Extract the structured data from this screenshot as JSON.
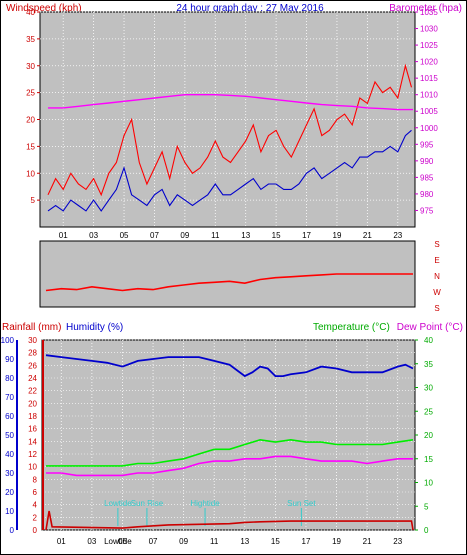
{
  "colors": {
    "plot_bg": "#c0c0c0",
    "wind": "#ff0000",
    "wind_avg": "#0000cc",
    "baro": "#ff00ff",
    "rain": "#cc0000",
    "humidity": "#0000cc",
    "temp": "#00ee00",
    "dew": "#ff00ff",
    "annotation": "#33cccc",
    "dir_letters": "#cc0000",
    "grid": "#ffffff"
  },
  "chart_data": [
    {
      "type": "line",
      "title": "24 hour graph day : 27 May 2016",
      "ylabel_left": "Windspeed (kph)",
      "ylabel_right": "Barometer (hpa)",
      "x_ticks": [
        "01",
        "03",
        "05",
        "07",
        "09",
        "11",
        "13",
        "15",
        "17",
        "19",
        "21",
        "23"
      ],
      "y_left_ticks": [
        "5",
        "10",
        "15",
        "20",
        "25",
        "30",
        "35",
        "40"
      ],
      "y_left_range": [
        0,
        40
      ],
      "y_right_ticks": [
        "975",
        "980",
        "985",
        "990",
        "995",
        "1000",
        "1005",
        "1010",
        "1015",
        "1020",
        "1025",
        "1030",
        "1035"
      ],
      "y_right_range": [
        970,
        1035
      ],
      "x_range": [
        0,
        24
      ],
      "grid": true,
      "series": [
        {
          "role": "gust",
          "color": "#ff0000",
          "x": [
            0.0,
            0.5,
            1.0,
            1.5,
            2.0,
            2.5,
            3.0,
            3.5,
            4.0,
            4.5,
            5.0,
            5.5,
            6.0,
            6.5,
            7.0,
            7.5,
            8.0,
            8.5,
            9.0,
            9.5,
            10.0,
            10.5,
            11.0,
            11.5,
            12.0,
            12.5,
            13.0,
            13.5,
            14.0,
            14.5,
            15.0,
            15.5,
            16.0,
            16.5,
            17.0,
            17.5,
            18.0,
            18.5,
            19.0,
            19.5,
            20.0,
            20.5,
            21.0,
            21.5,
            22.0,
            22.5,
            23.0,
            23.5,
            23.9
          ],
          "y": [
            6,
            9,
            7,
            10,
            8,
            7,
            9,
            6,
            10,
            12,
            17,
            20,
            12,
            8,
            11,
            14,
            9,
            15,
            12,
            10,
            11,
            13,
            16,
            13,
            12,
            14,
            16,
            19,
            14,
            17,
            18,
            15,
            13,
            16,
            19,
            22,
            17,
            18,
            20,
            21,
            19,
            24,
            23,
            27,
            25,
            26,
            24,
            30,
            26
          ]
        },
        {
          "role": "average",
          "color": "#0000cc",
          "x": [
            0.0,
            0.5,
            1.0,
            1.5,
            2.0,
            2.5,
            3.0,
            3.5,
            4.0,
            4.5,
            5.0,
            5.5,
            6.0,
            6.5,
            7.0,
            7.5,
            8.0,
            8.5,
            9.0,
            9.5,
            10.0,
            10.5,
            11.0,
            11.5,
            12.0,
            12.5,
            13.0,
            13.5,
            14.0,
            14.5,
            15.0,
            15.5,
            16.0,
            16.5,
            17.0,
            17.5,
            18.0,
            18.5,
            19.0,
            19.5,
            20.0,
            20.5,
            21.0,
            21.5,
            22.0,
            22.5,
            23.0,
            23.5,
            23.9
          ],
          "y": [
            3,
            4,
            3,
            5,
            4,
            3,
            5,
            3,
            5,
            7,
            11,
            6,
            5,
            4,
            6,
            7,
            4,
            6,
            5,
            4,
            5,
            6,
            8,
            6,
            6,
            7,
            8,
            9,
            7,
            8,
            8,
            7,
            7,
            8,
            10,
            11,
            9,
            10,
            11,
            12,
            11,
            13,
            13,
            14,
            14,
            15,
            14,
            17,
            18
          ]
        },
        {
          "role": "barometer",
          "axis": "right",
          "color": "#ff00ff",
          "x": [
            0,
            1,
            2,
            3,
            4,
            5,
            6,
            7,
            8,
            9,
            10,
            11,
            12,
            13,
            14,
            15,
            16,
            17,
            18,
            19,
            20,
            21,
            22,
            23,
            24
          ],
          "y": [
            1006,
            1006,
            1006.5,
            1007,
            1007.5,
            1008,
            1008.5,
            1009,
            1009.5,
            1010,
            1010,
            1010,
            1009.8,
            1009.5,
            1009,
            1008.5,
            1008,
            1007.5,
            1007,
            1006.7,
            1006.5,
            1006,
            1005.8,
            1005.5,
            1005.5
          ]
        }
      ]
    },
    {
      "type": "line",
      "ylabel_right_letters": [
        "S",
        "E",
        "N",
        "W",
        "S"
      ],
      "x_range": [
        0,
        24
      ],
      "y_range": [
        0,
        360
      ],
      "series": [
        {
          "role": "direction",
          "color": "#ff0000",
          "x": [
            0,
            1,
            2,
            3,
            4,
            5,
            6,
            7,
            8,
            9,
            10,
            11,
            12,
            13,
            14,
            15,
            16,
            17,
            18,
            19,
            20,
            21,
            22,
            23,
            24
          ],
          "y": [
            90,
            100,
            95,
            110,
            100,
            90,
            100,
            95,
            110,
            120,
            130,
            135,
            140,
            130,
            150,
            160,
            165,
            170,
            175,
            180,
            180,
            180,
            180,
            180,
            180
          ]
        }
      ]
    },
    {
      "type": "line",
      "ylabel_left": "Rainfall (mm)",
      "ylabel_left2": "Humidity (%)",
      "ylabel_right": "Temperature (°C)",
      "ylabel_right2": "Dew Point (°C)",
      "x_ticks": [
        "01",
        "03",
        "05",
        "07",
        "09",
        "11",
        "13",
        "15",
        "17",
        "19",
        "21",
        "23"
      ],
      "rain_ticks": [
        "0",
        "2",
        "4",
        "6",
        "8",
        "10",
        "12",
        "14",
        "16",
        "18",
        "20",
        "22",
        "24",
        "26",
        "28",
        "30"
      ],
      "rain_range": [
        0,
        30
      ],
      "hum_ticks": [
        "0",
        "10",
        "20",
        "30",
        "40",
        "50",
        "60",
        "70",
        "80",
        "90",
        "100"
      ],
      "hum_range": [
        0,
        100
      ],
      "temp_ticks": [
        "0",
        "5",
        "10",
        "15",
        "20",
        "25",
        "30",
        "35",
        "40"
      ],
      "temp_range": [
        0,
        40
      ],
      "x_range": [
        0,
        24
      ],
      "grid": true,
      "annotations": [
        {
          "text": "Lowtide",
          "x": 4.7
        },
        {
          "text": "Sun Rise",
          "x": 6.6
        },
        {
          "text": "Hightide",
          "x": 10.4
        },
        {
          "text": "Sun Set",
          "x": 16.7
        },
        {
          "text": "Lowtide",
          "x": 4.7,
          "position": "axis"
        }
      ],
      "series": [
        {
          "role": "humidity",
          "color": "#0000cc",
          "x": [
            0,
            1,
            2,
            3,
            4,
            5,
            6,
            7,
            8,
            9,
            10,
            11,
            12,
            12.5,
            13,
            13.5,
            14,
            14.5,
            15,
            15.5,
            16,
            17,
            18,
            19,
            20,
            21,
            22,
            23,
            23.5,
            24
          ],
          "y": [
            92,
            91,
            90,
            89,
            88,
            86,
            89,
            90,
            91,
            91,
            91,
            89,
            87,
            84,
            81,
            83,
            86,
            85,
            81,
            81,
            82,
            83,
            86,
            85,
            83,
            83,
            83,
            86,
            87,
            85
          ]
        },
        {
          "role": "temperature",
          "axis": "right",
          "color": "#00ee00",
          "x": [
            0,
            1,
            2,
            3,
            4,
            5,
            6,
            7,
            8,
            9,
            10,
            11,
            12,
            13,
            14,
            15,
            16,
            17,
            18,
            19,
            20,
            21,
            22,
            23,
            24
          ],
          "y": [
            13.5,
            13.5,
            13.5,
            13.5,
            13.5,
            13.5,
            14,
            14,
            14.5,
            15,
            16,
            17,
            17,
            18,
            19,
            18.5,
            19,
            18.5,
            18.5,
            18,
            18,
            18,
            18,
            18.5,
            19
          ]
        },
        {
          "role": "dew_point",
          "axis": "right",
          "color": "#ff00ff",
          "x": [
            0,
            1,
            2,
            3,
            4,
            5,
            6,
            7,
            8,
            9,
            10,
            11,
            12,
            13,
            14,
            15,
            16,
            17,
            18,
            19,
            20,
            21,
            22,
            23,
            24
          ],
          "y": [
            12,
            12,
            11.5,
            11.5,
            11.5,
            11.5,
            12,
            12,
            12.5,
            13,
            14,
            14.5,
            14.5,
            15,
            15,
            15.5,
            15.5,
            15,
            14.5,
            14.5,
            14.5,
            14,
            14.5,
            15,
            15
          ]
        },
        {
          "role": "rainfall",
          "color": "#cc0000",
          "x": [
            0,
            0.2,
            0.4,
            5,
            6,
            8,
            12,
            13,
            14,
            16,
            18,
            20,
            22,
            23.9,
            24
          ],
          "y": [
            0,
            3,
            0.5,
            0.3,
            0.5,
            0.8,
            1.0,
            1.2,
            1.3,
            1.4,
            1.4,
            1.4,
            1.4,
            1.4,
            0
          ]
        }
      ]
    }
  ]
}
